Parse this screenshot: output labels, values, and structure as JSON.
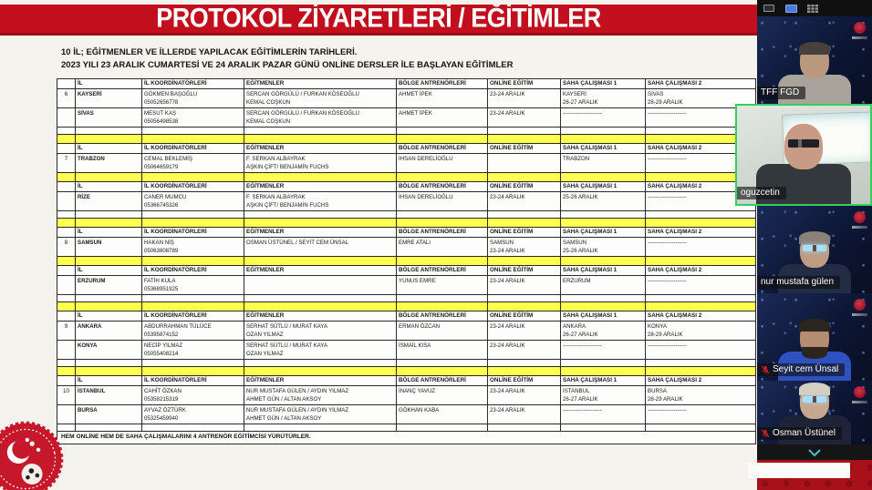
{
  "document": {
    "banner_title": "PROTOKOL ZİYARETLERİ / EĞİTİMLER",
    "intro_line1": "10 İL; EĞİTMENLER VE İLLERDE YAPILACAK EĞİTİMLERİN TARİHLERİ.",
    "intro_line2": "2023 YILI 23 ARALIK CUMARTESİ VE 24 ARALIK PAZAR GÜNÜ ONLİNE DERSLER İLE BAŞLAYAN EĞİTİMLER",
    "footer_note": "HEM ONLİNE HEM DE SAHA ÇALIŞMALARINI 4 ANTRENÖR EĞİTİMCİSİ YÜRÜTÜRLER.",
    "logo": "tff-crest"
  },
  "table": {
    "column_headers": [
      "İL",
      "İL KOORDİNATÖRLERİ",
      "EĞİTMENLER",
      "BÖLGE ANTRENÖRLERİ",
      "ONLİNE EĞİTİM",
      "SAHA ÇALIŞMASI 1",
      "SAHA ÇALIŞMASI 2"
    ],
    "rows": [
      {
        "type": "header"
      },
      {
        "type": "data",
        "num": "6",
        "il": "KAYSERİ",
        "koordinator": [
          "GÖKMEN BAŞOĞLU",
          "05052656778"
        ],
        "egitmenler": [
          "SERCAN GÖRGÜLÜ / FURKAN KÖSEOĞLU",
          "KEMAL COŞKUN"
        ],
        "bolge": [
          "AHMET İPEK"
        ],
        "online": [
          "23-24 ARALIK"
        ],
        "saha1": [
          "KAYSERİ",
          "26-27 ARALIK"
        ],
        "saha2": [
          "SİVAS",
          "28-29 ARALIK"
        ]
      },
      {
        "type": "data",
        "num": "",
        "il": "SİVAS",
        "koordinator": [
          "MESUT KAŞ",
          "05056498538"
        ],
        "egitmenler": [
          "SERCAN GÖRGÜLÜ / FURKAN KÖSEOĞLU",
          "KEMAL COŞKUN"
        ],
        "bolge": [
          "AHMET İPEK"
        ],
        "online": [
          "23-24 ARALIK"
        ],
        "saha1": [
          "---------------------"
        ],
        "saha2": [
          "---------------------"
        ]
      },
      {
        "type": "white"
      },
      {
        "type": "yellow"
      },
      {
        "type": "header"
      },
      {
        "type": "data",
        "num": "7",
        "il": "TRABZON",
        "koordinator": [
          "CEMAL BEKLEMİŞ",
          "05064659179"
        ],
        "egitmenler": [
          "F. SERKAN ALBAYRAK",
          "AŞKIN ÇİFT/ BENJAMİN FUCHS"
        ],
        "bolge": [
          "İHSAN DERELİOĞLU"
        ],
        "online": [],
        "saha1": [
          "TRABZON"
        ],
        "saha2": [
          "---------------------"
        ]
      },
      {
        "type": "yellow"
      },
      {
        "type": "header"
      },
      {
        "type": "data",
        "num": "",
        "il": "RİZE",
        "koordinator": [
          "CANER MUMCU",
          "05366745326"
        ],
        "egitmenler": [
          "F. SERKAN ALBAYRAK",
          "AŞKIN ÇİFT/ BENJAMİN FUCHS"
        ],
        "bolge": [
          "İHSAN DERELİOĞLU"
        ],
        "online": [
          "23-24 ARALIK"
        ],
        "saha1": [
          "25-26 ARALIK"
        ],
        "saha2": [
          "---------------------"
        ]
      },
      {
        "type": "white"
      },
      {
        "type": "yellow"
      },
      {
        "type": "header"
      },
      {
        "type": "data",
        "num": "8",
        "il": "SAMSUN",
        "koordinator": [
          "HAKAN NİŞ",
          "05063808789"
        ],
        "egitmenler": [
          "OSMAN ÜSTÜNEL / SEYİT CEM ÜNSAL"
        ],
        "bolge": [
          "EMRE ATALI"
        ],
        "online": [
          "SAMSUN",
          "23-24 ARALIK"
        ],
        "saha1": [
          "SAMSUN",
          "25-26 ARALIK"
        ],
        "saha2": [
          "---------------------"
        ]
      },
      {
        "type": "yellow"
      },
      {
        "type": "header"
      },
      {
        "type": "data",
        "num": "",
        "il": "ERZURUM",
        "koordinator": [
          "FATİH KULA",
          "05368951925"
        ],
        "egitmenler": [],
        "bolge": [
          "YUNUS EMRE"
        ],
        "online": [
          "23-24 ARALIK"
        ],
        "saha1": [
          "ERZURUM"
        ],
        "saha2": [
          "---------------------"
        ]
      },
      {
        "type": "white"
      },
      {
        "type": "yellow"
      },
      {
        "type": "header"
      },
      {
        "type": "data",
        "num": "9",
        "il": "ANKARA",
        "koordinator": [
          "ABDURRAHMAN TÜLÜCE",
          "05395874152"
        ],
        "egitmenler": [
          "SERHAT SÜTLÜ / MURAT KAYA",
          "OZAN YILMAZ"
        ],
        "bolge": [
          "ERMAN ÖZCAN"
        ],
        "online": [
          "23-24 ARALIK"
        ],
        "saha1": [
          "ANKARA",
          "26-27 ARALIK"
        ],
        "saha2": [
          "KONYA",
          "28-29 ARALIK"
        ]
      },
      {
        "type": "data",
        "num": "",
        "il": "KONYA",
        "koordinator": [
          "NECİP YILMAZ",
          "05055408214"
        ],
        "egitmenler": [
          "SERHAT SÜTLÜ / MURAT KAYA",
          "OZAN YILMAZ"
        ],
        "bolge": [
          "İSMAİL KISA"
        ],
        "online": [
          "23-24 ARALIK"
        ],
        "saha1": [
          "---------------------"
        ],
        "saha2": [
          "---------------------"
        ]
      },
      {
        "type": "white"
      },
      {
        "type": "yellow"
      },
      {
        "type": "header"
      },
      {
        "type": "data",
        "num": "10",
        "il": "İSTANBUL",
        "koordinator": [
          "CAHİT ÖZKAN",
          "05358215319"
        ],
        "egitmenler": [
          "NUR MUSTAFA GÜLEN / AYDIN YILMAZ",
          "AHMET GÜN / ALTAN AKSOY"
        ],
        "bolge": [
          "İNANÇ YAVUZ"
        ],
        "online": [
          "23-24 ARALIK"
        ],
        "saha1": [
          "İSTANBUL",
          "26-27 ARALIK"
        ],
        "saha2": [
          "BURSA",
          "28-29 ARALIK"
        ]
      },
      {
        "type": "data",
        "num": "",
        "il": "BURSA",
        "koordinator": [
          "AYVAZ ÖZTÜRK",
          "05325459940"
        ],
        "egitmenler": [
          "NUR MUSTAFA GÜLEN / AYDIN YILMAZ",
          "AHMET GÜN / ALTAN AKSOY"
        ],
        "bolge": [
          "GÖKHAN KABA"
        ],
        "online": [
          "23-24 ARALIK"
        ],
        "saha1": [
          "---------------------"
        ],
        "saha2": [
          "---------------------"
        ]
      },
      {
        "type": "white"
      },
      {
        "type": "footer"
      }
    ]
  },
  "sidebar": {
    "view_buttons": [
      {
        "id": "speaker-view",
        "active": false
      },
      {
        "id": "sidebar-view",
        "active": true
      },
      {
        "id": "gallery-view",
        "active": false
      }
    ],
    "participants": [
      {
        "name": "TFF FGD",
        "muted": false,
        "active_speaker": false,
        "background": "navy",
        "tff_logo": true,
        "appearance": {
          "skin": "#b9987e",
          "hair": "#48403a",
          "shirt": "#a9a49b",
          "glasses": null,
          "beard": false
        }
      },
      {
        "name": "oguzcetin",
        "muted": false,
        "active_speaker": true,
        "background": "light",
        "tff_logo": false,
        "appearance": {
          "skin": "#c89b85",
          "hair": null,
          "shirt": "#33383c",
          "glasses": "dark",
          "beard": false
        }
      },
      {
        "name": "nur mustafa gülen",
        "muted": false,
        "active_speaker": false,
        "background": "navy",
        "tff_logo": true,
        "appearance": {
          "skin": "#bd9c82",
          "hair": "#8a8177",
          "shirt": "#232c45",
          "glasses": "glow",
          "beard": false
        }
      },
      {
        "name": "Seyit cem Ünsal",
        "muted": true,
        "active_speaker": false,
        "background": "navy",
        "tff_logo": true,
        "appearance": {
          "skin": "#b58b72",
          "hair": "#2c241e",
          "shirt": "#2e51c0",
          "glasses": null,
          "beard": true
        }
      },
      {
        "name": "Osman Üstünel",
        "muted": true,
        "active_speaker": false,
        "background": "navy",
        "tff_logo": true,
        "appearance": {
          "skin": "#c7a88e",
          "hair": "#d6cec2",
          "shirt": "#1d2438",
          "glasses": "glow",
          "beard": false
        }
      }
    ],
    "collapse_icon": "chevron-down"
  },
  "colors": {
    "banner_red": "#c30e1e",
    "highlight_yellow": "#ffff4d",
    "active_speaker_green": "#35cf5f",
    "muted_mic_red": "#e02424",
    "tile_navy": "#101c3c",
    "bottom_red": "#a8111a",
    "view_button_active_blue": "#4a79da"
  }
}
